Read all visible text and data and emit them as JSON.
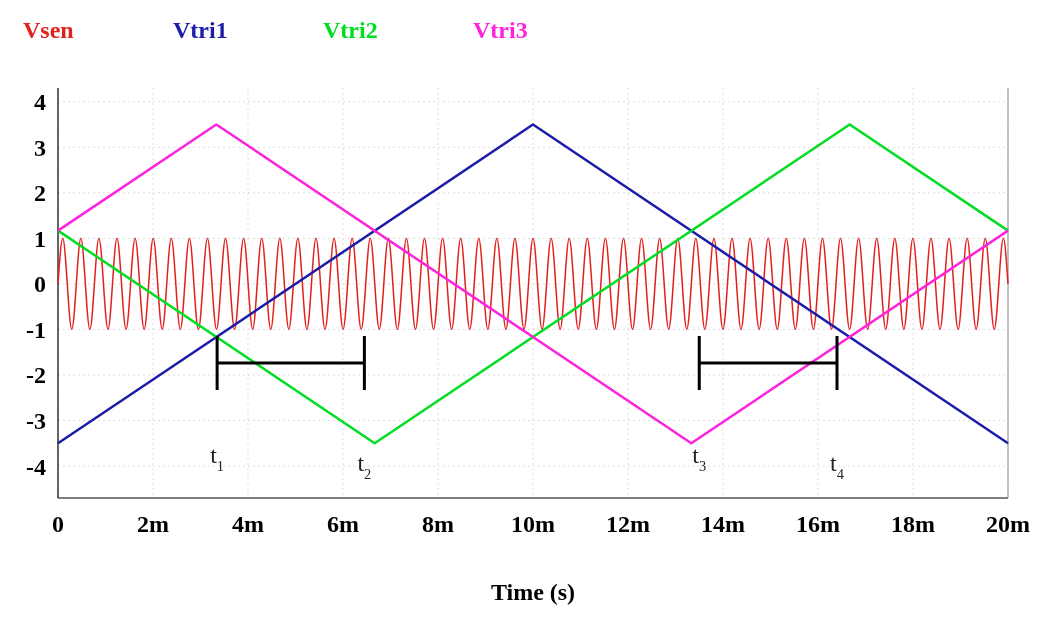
{
  "chart_data": {
    "type": "line",
    "xlabel": "Time (s)",
    "xlim": [
      0,
      20
    ],
    "ylim": [
      -4.7,
      4.3
    ],
    "xticks": [
      0,
      {
        "value": 2,
        "label": "2m"
      },
      {
        "value": 4,
        "label": "4m"
      },
      {
        "value": 6,
        "label": "6m"
      },
      {
        "value": 8,
        "label": "8m"
      },
      {
        "value": 10,
        "label": "10m"
      },
      {
        "value": 12,
        "label": "12m"
      },
      {
        "value": 14,
        "label": "14m"
      },
      {
        "value": 16,
        "label": "16m"
      },
      {
        "value": 18,
        "label": "18m"
      },
      {
        "value": 20,
        "label": "20m"
      }
    ],
    "yticks": [
      -4,
      -3,
      -2,
      -1,
      0,
      1,
      2,
      3,
      4
    ],
    "grid": true,
    "legend": "top left",
    "marker": "none",
    "line_style": "solid",
    "series": [
      {
        "name": "Vsen",
        "color": "#e3211c",
        "x": [
          0,
          0.1,
          0.29,
          0.481,
          0.671,
          0.862,
          1.052,
          1.242,
          1.433,
          1.623,
          1.814,
          2.004,
          2.194,
          2.385,
          2.575,
          2.766,
          2.956,
          3.146,
          3.337,
          3.527,
          3.718,
          3.908,
          4.098,
          4.289,
          4.479,
          4.67,
          4.86,
          5.05,
          5.241,
          5.431,
          5.622,
          5.812,
          6.002,
          6.193,
          6.383,
          6.574,
          6.764,
          6.954,
          7.145,
          7.335,
          7.526,
          7.716,
          7.906,
          8.097,
          8.287,
          8.478,
          8.668,
          8.858,
          9.049,
          9.239,
          9.43,
          9.62,
          9.81,
          10.001,
          10.191,
          10.382,
          10.572,
          10.762,
          10.953,
          11.143,
          11.334,
          11.524,
          11.714,
          11.905,
          12.095,
          12.286,
          12.476,
          12.666,
          12.857,
          13.047,
          13.238,
          13.428,
          13.618,
          13.809,
          13.999,
          14.19,
          14.38,
          14.57,
          14.761,
          14.951,
          15.142,
          15.332,
          15.522,
          15.713,
          15.903,
          16.094,
          16.284,
          16.474,
          16.665,
          16.855,
          17.046,
          17.236,
          17.426,
          17.617,
          17.807,
          17.998,
          18.188,
          18.378,
          18.569,
          18.759,
          18.95,
          19.14,
          19.33,
          19.521,
          19.711,
          19.902,
          20
        ],
        "values": [
          0,
          1,
          -1,
          1,
          -1,
          1,
          -1,
          1,
          -1,
          1,
          -1,
          1,
          -1,
          1,
          -1,
          1,
          -1,
          1,
          -1,
          1,
          -1,
          1,
          -1,
          1,
          -1,
          1,
          -1,
          1,
          -1,
          1,
          -1,
          1,
          -1,
          1,
          -1,
          1,
          -1,
          1,
          -1,
          1,
          -1,
          1,
          -1,
          1,
          -1,
          1,
          -1,
          1,
          -1,
          1,
          -1,
          1,
          -1,
          1,
          -1,
          1,
          -1,
          1,
          -1,
          1,
          -1,
          1,
          -1,
          1,
          -1,
          1,
          -1,
          1,
          -1,
          1,
          -1,
          1,
          -1,
          1,
          -1,
          1,
          -1,
          1,
          -1,
          1,
          -1,
          1,
          -1,
          1,
          -1,
          1,
          -1,
          1,
          -1,
          1,
          -1,
          1,
          -1,
          1,
          -1,
          1,
          -1,
          1,
          -1,
          1,
          -1,
          1,
          -1,
          1,
          -1,
          1,
          0
        ]
      },
      {
        "name": "Vtri1",
        "color": "#1c1ca8",
        "x": [
          0,
          10,
          20
        ],
        "values": [
          -3.5,
          3.5,
          -3.5
        ]
      },
      {
        "name": "Vtri2",
        "color": "#00dd22",
        "x": [
          0,
          6.667,
          16.667,
          20
        ],
        "values": [
          1.17,
          -3.5,
          3.5,
          1.17
        ]
      },
      {
        "name": "Vtri3",
        "color": "#ff22dd",
        "x": [
          0,
          3.333,
          13.333,
          20
        ],
        "values": [
          1.17,
          3.5,
          -3.5,
          1.17
        ]
      }
    ],
    "annotations": [
      "t$_{1}$",
      "t$_{2}$",
      "t$_{3}$",
      "t$_{4}$"
    ]
  }
}
